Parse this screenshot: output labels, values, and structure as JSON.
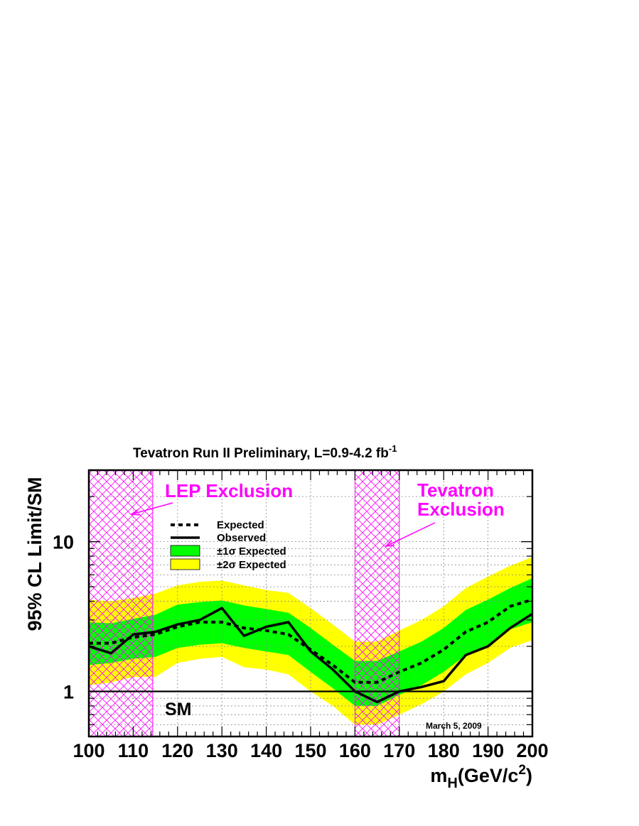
{
  "chart_data": {
    "type": "line",
    "title": "Tevatron Run II Preliminary, L=0.9-4.2 fb",
    "title_superscript": "-1",
    "xlabel_main": "m",
    "xlabel_subscript": "H",
    "xlabel_rest": "(GeV/c",
    "xlabel_superscript": "2",
    "xlabel_close": ")",
    "ylabel": "95% CL Limit/SM",
    "xlim": [
      100,
      200
    ],
    "ylim": [
      0.5,
      30
    ],
    "yscale": "log",
    "grid": true,
    "x_ticks": [
      100,
      110,
      120,
      130,
      140,
      150,
      160,
      170,
      180,
      190,
      200
    ],
    "y_ticks": [
      {
        "value": 1,
        "label": "1"
      },
      {
        "value": 10,
        "label": "10"
      }
    ],
    "x": [
      100,
      105,
      110,
      115,
      120,
      125,
      130,
      135,
      140,
      145,
      150,
      155,
      160,
      165,
      170,
      175,
      180,
      185,
      190,
      195,
      200
    ],
    "expected": [
      2.1,
      2.1,
      2.3,
      2.4,
      2.7,
      2.9,
      2.9,
      2.65,
      2.55,
      2.4,
      1.9,
      1.5,
      1.15,
      1.15,
      1.35,
      1.55,
      1.9,
      2.5,
      2.9,
      3.7,
      4.1
    ],
    "observed": [
      2.0,
      1.8,
      2.4,
      2.5,
      2.8,
      3.0,
      3.6,
      2.35,
      2.7,
      2.9,
      1.85,
      1.4,
      1.0,
      0.85,
      1.0,
      1.07,
      1.17,
      1.75,
      2.0,
      2.65,
      3.3
    ],
    "band_1sigma_low": [
      1.5,
      1.55,
      1.65,
      1.7,
      1.95,
      2.05,
      2.1,
      1.95,
      1.85,
      1.75,
      1.35,
      1.05,
      0.8,
      0.8,
      0.95,
      1.1,
      1.35,
      1.75,
      2.05,
      2.6,
      2.9
    ],
    "band_1sigma_high": [
      2.9,
      2.85,
      3.05,
      3.25,
      3.8,
      3.95,
      4.05,
      3.75,
      3.55,
      3.35,
      2.65,
      2.05,
      1.6,
      1.6,
      1.85,
      2.15,
      2.65,
      3.5,
      4.1,
      4.9,
      5.7
    ],
    "band_2sigma_low": [
      1.1,
      1.15,
      1.25,
      1.25,
      1.55,
      1.65,
      1.7,
      1.45,
      1.4,
      1.3,
      1.0,
      0.8,
      0.6,
      0.6,
      0.7,
      0.82,
      1.0,
      1.3,
      1.55,
      1.95,
      2.2
    ],
    "band_2sigma_high": [
      4.1,
      4.0,
      4.2,
      4.5,
      5.1,
      5.4,
      5.5,
      5.1,
      4.75,
      4.55,
      3.6,
      2.8,
      2.15,
      2.15,
      2.55,
      3.0,
      3.7,
      4.9,
      5.85,
      6.9,
      7.9
    ],
    "sm_line": 1,
    "exclusions": [
      {
        "label_lines": [
          "LEP Exclusion"
        ],
        "x_range": [
          100,
          114.4
        ]
      },
      {
        "label_lines": [
          "Tevatron",
          "Exclusion"
        ],
        "x_range": [
          160,
          170
        ]
      }
    ],
    "legend": {
      "placement": "upper-left",
      "entries": [
        {
          "label": "Expected",
          "style": "dashed-line"
        },
        {
          "label": "Observed",
          "style": "solid-line"
        },
        {
          "label": "±1σ Expected",
          "style": "fill",
          "color": "#00ff00"
        },
        {
          "label": "±2σ Expected",
          "style": "fill",
          "color": "#ffff00"
        }
      ]
    },
    "sm_label": "SM",
    "date_label": "March 5, 2009",
    "colors": {
      "band_1sigma": "#00ff00",
      "band_2sigma": "#ffff00",
      "exclusion_hatch": "#ff00ff",
      "exclusion_text": "#ff00ff",
      "lines": "#000000"
    }
  }
}
